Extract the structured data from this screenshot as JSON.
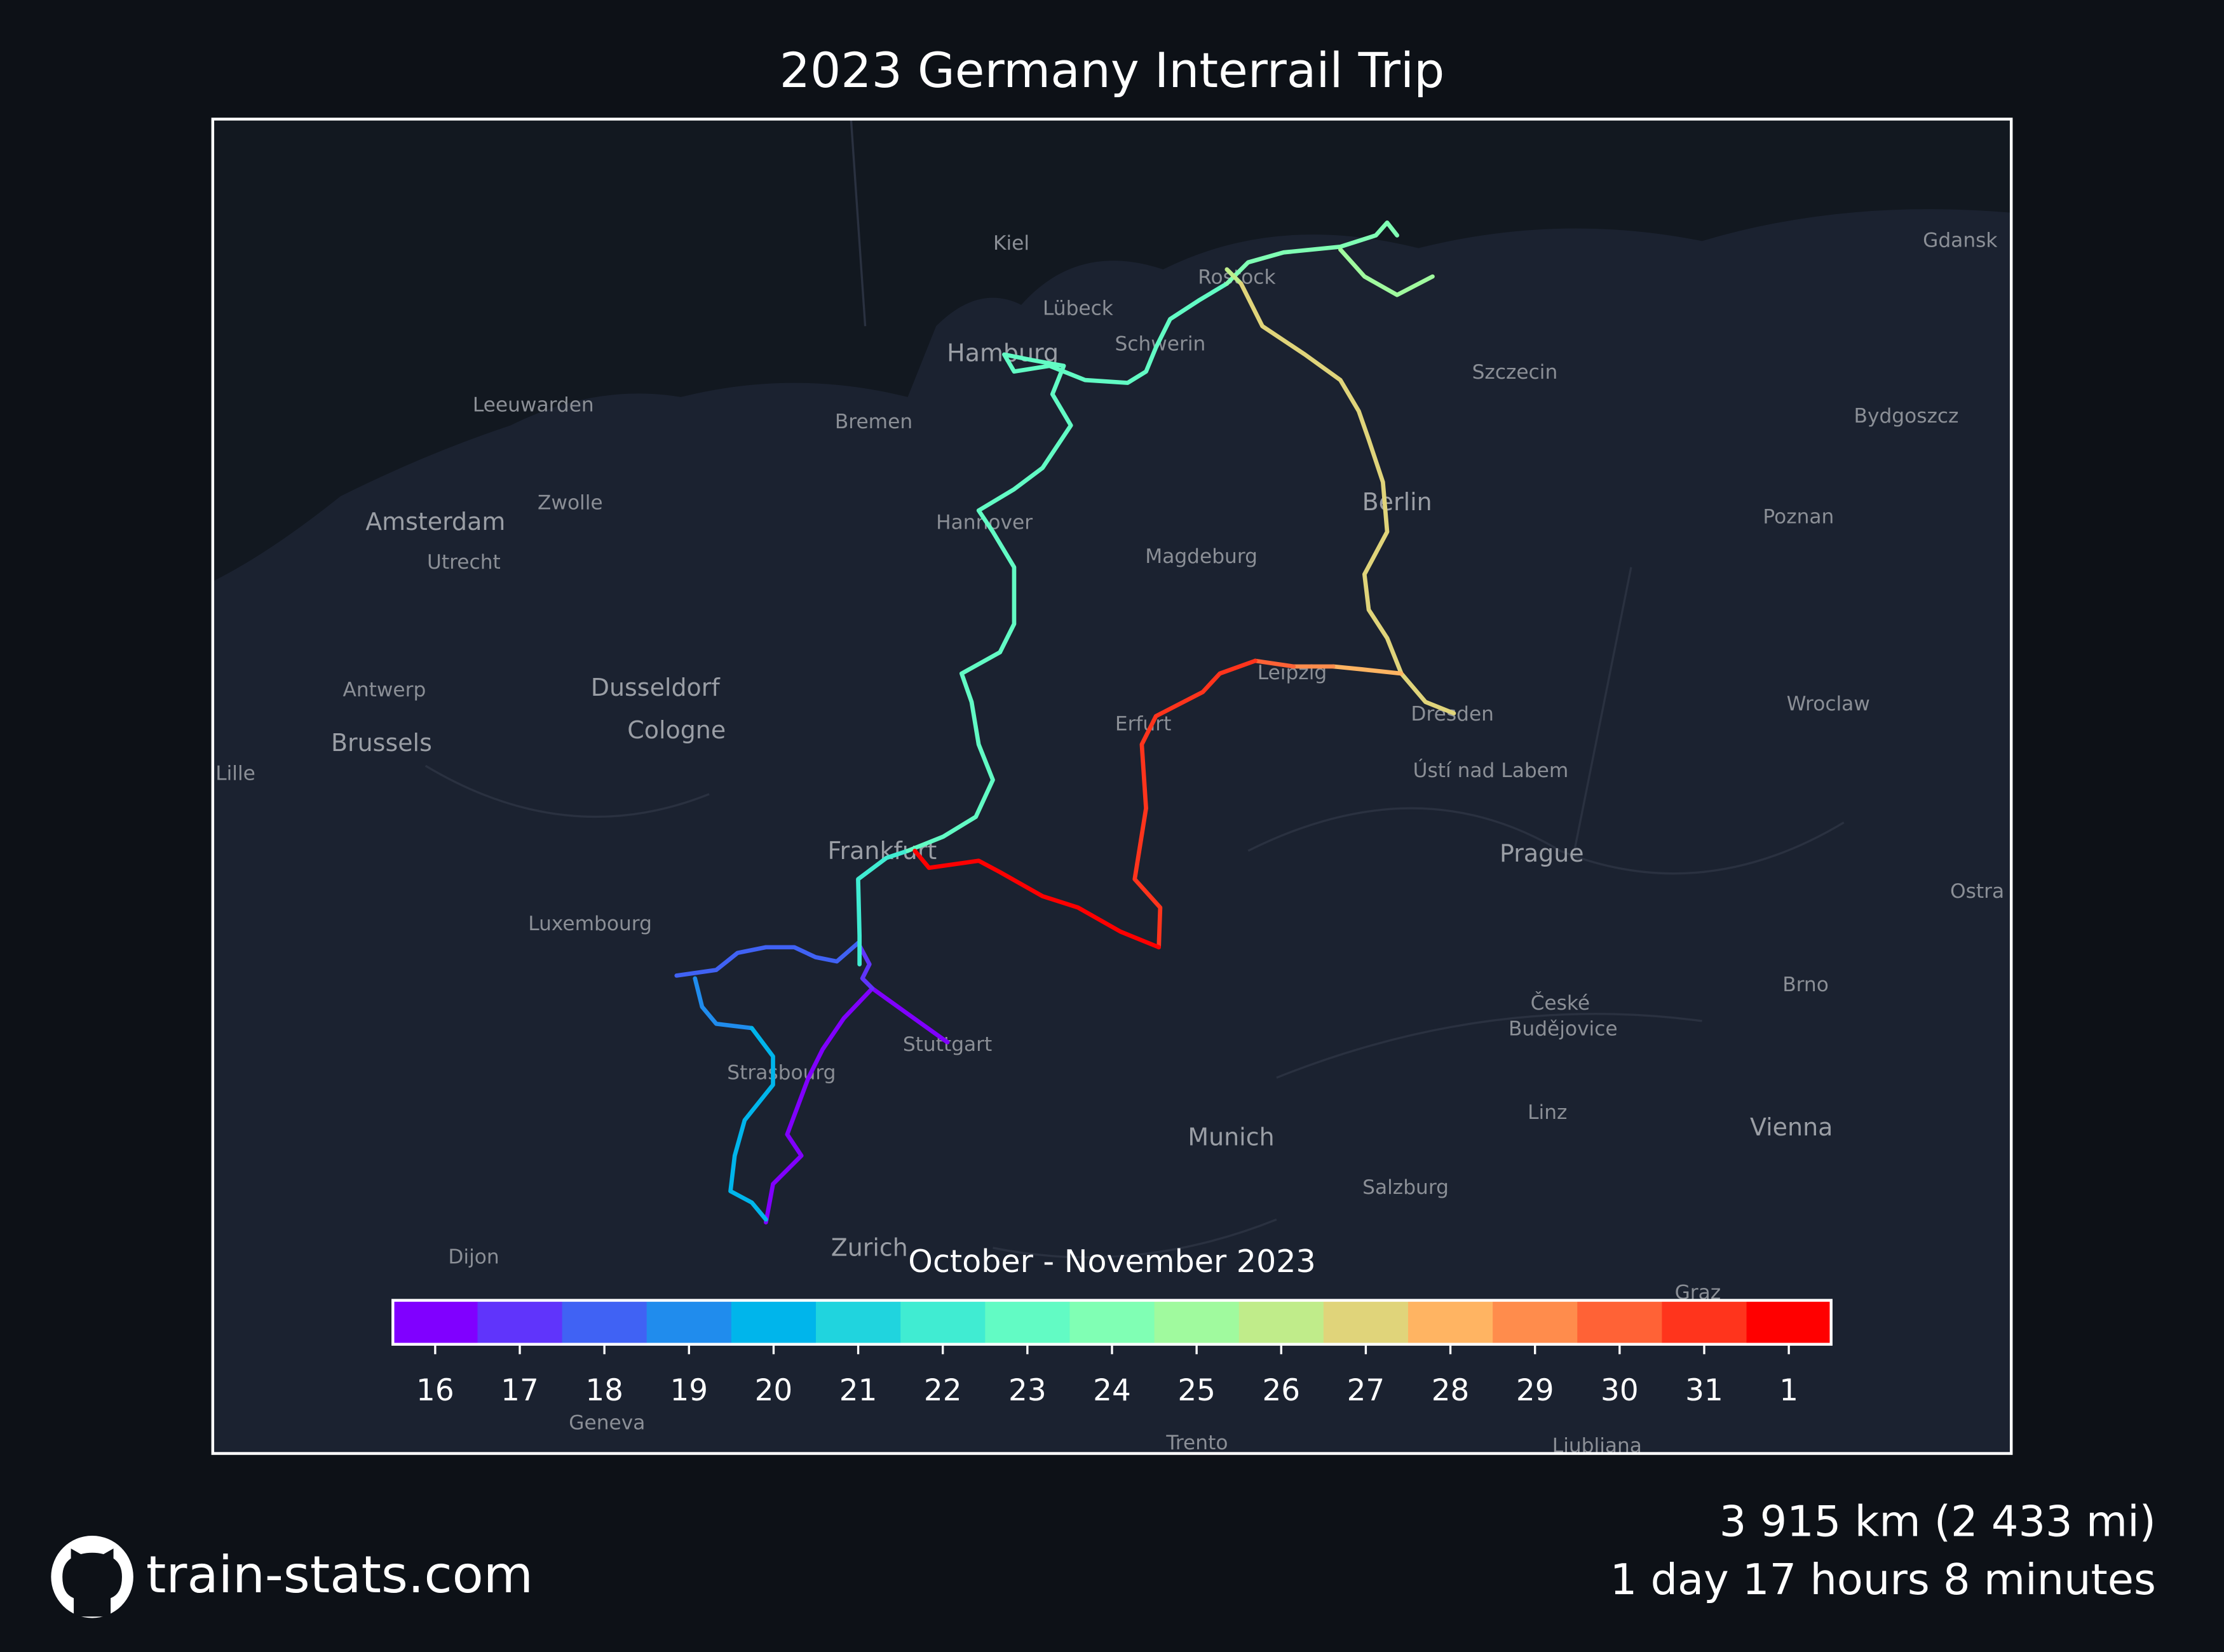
{
  "header": {
    "title": "2023 Germany Interrail Trip"
  },
  "map": {
    "cities": [
      {
        "name": "Kiel"
      },
      {
        "name": "Lübeck"
      },
      {
        "name": "Rostock"
      },
      {
        "name": "Schwerin"
      },
      {
        "name": "Hamburg"
      },
      {
        "name": "Szczecin"
      },
      {
        "name": "Gdansk"
      },
      {
        "name": "Bydgoszcz"
      },
      {
        "name": "Leeuwarden"
      },
      {
        "name": "Bremen"
      },
      {
        "name": "Zwolle"
      },
      {
        "name": "Amsterdam"
      },
      {
        "name": "Berlin"
      },
      {
        "name": "Poznan"
      },
      {
        "name": "Utrecht"
      },
      {
        "name": "Hannover"
      },
      {
        "name": "Magdeburg"
      },
      {
        "name": "Antwerp"
      },
      {
        "name": "Dusseldorf"
      },
      {
        "name": "Leipzig"
      },
      {
        "name": "Wroclaw"
      },
      {
        "name": "Cologne"
      },
      {
        "name": "Brussels"
      },
      {
        "name": "Erfurt"
      },
      {
        "name": "Dresden"
      },
      {
        "name": "Lille"
      },
      {
        "name": "Ústí nad Labem"
      },
      {
        "name": "Frankfurt"
      },
      {
        "name": "Prague"
      },
      {
        "name": "Ostra"
      },
      {
        "name": "Luxembourg"
      },
      {
        "name": "Brno"
      },
      {
        "name": "České"
      },
      {
        "name": "Budějovice"
      },
      {
        "name": "Stuttgart"
      },
      {
        "name": "Strasbourg"
      },
      {
        "name": "Linz"
      },
      {
        "name": "Munich"
      },
      {
        "name": "Vienna"
      },
      {
        "name": "Salzburg"
      },
      {
        "name": "Dijon"
      },
      {
        "name": "Zurich"
      },
      {
        "name": "Graz"
      },
      {
        "name": "Geneva"
      },
      {
        "name": "Trento"
      },
      {
        "name": "Ljubljana"
      }
    ]
  },
  "colorbar": {
    "label": "October - November 2023",
    "segments": [
      {
        "label": "16",
        "color": "#8000ff"
      },
      {
        "label": "17",
        "color": "#6034fb"
      },
      {
        "label": "18",
        "color": "#4062f4"
      },
      {
        "label": "19",
        "color": "#208ced"
      },
      {
        "label": "20",
        "color": "#00b5eb"
      },
      {
        "label": "21",
        "color": "#20d4de"
      },
      {
        "label": "22",
        "color": "#40ecd2"
      },
      {
        "label": "23",
        "color": "#62fbc4"
      },
      {
        "label": "24",
        "color": "#80ffb4"
      },
      {
        "label": "25",
        "color": "#a0fa9e"
      },
      {
        "label": "26",
        "color": "#c0ec8a"
      },
      {
        "label": "27",
        "color": "#e0d47a"
      },
      {
        "label": "28",
        "color": "#ffb462"
      },
      {
        "label": "29",
        "color": "#ff8c4c"
      },
      {
        "label": "30",
        "color": "#ff6236"
      },
      {
        "label": "31",
        "color": "#ff341c"
      },
      {
        "label": "1",
        "color": "#ff0000"
      }
    ]
  },
  "footer": {
    "site": "train-stats.com",
    "distance": "3 915 km (2 433 mi)",
    "duration": "1 day 17 hours 8 minutes"
  }
}
